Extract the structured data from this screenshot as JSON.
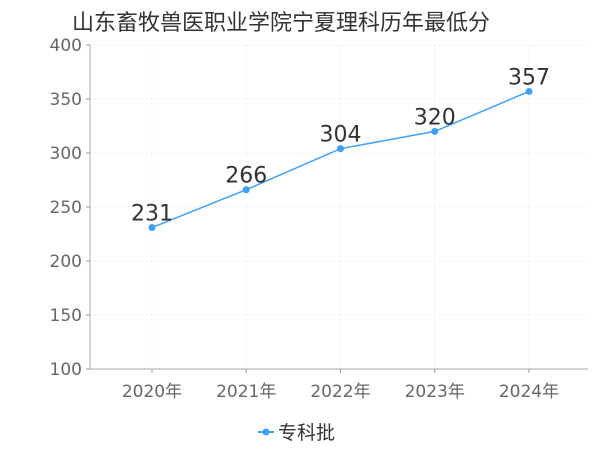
{
  "chart_data": {
    "type": "line",
    "title": "山东畜牧兽医职业学院宁夏理科历年最低分",
    "categories": [
      "2020年",
      "2021年",
      "2022年",
      "2023年",
      "2024年"
    ],
    "series": [
      {
        "name": "专科批",
        "values": [
          231,
          266,
          304,
          320,
          357
        ],
        "color": "#3fa0f5"
      }
    ],
    "ylim": [
      100,
      400
    ],
    "yticks": [
      100,
      150,
      200,
      250,
      300,
      350,
      400
    ],
    "grid": true,
    "legend": "bottom",
    "data_labels": true
  }
}
